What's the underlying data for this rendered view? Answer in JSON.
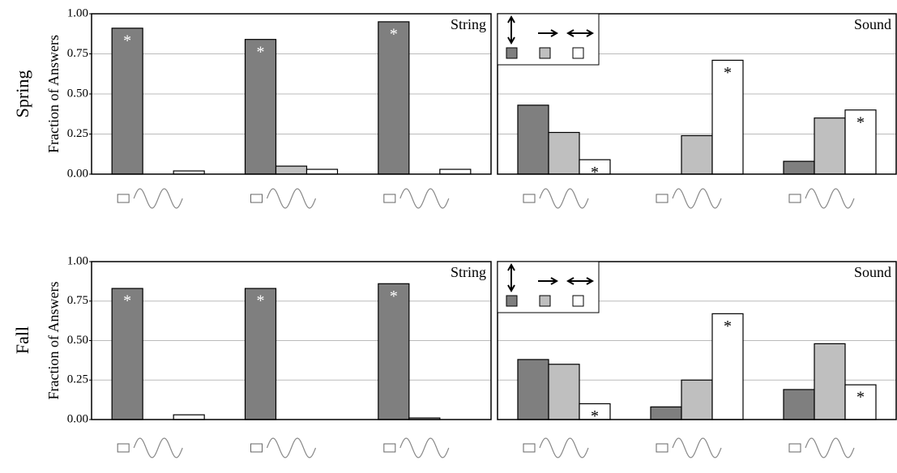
{
  "rows": [
    "Spring",
    "Fall"
  ],
  "chart_data": [
    {
      "type": "bar",
      "title": "String",
      "ylabel": "Fraction of Answers",
      "categories": [
        null,
        null,
        null
      ],
      "series": [
        {
          "color": "#7f7f7f",
          "values": [
            0.91,
            0.84,
            0.95
          ]
        },
        {
          "color": "#bfbfbf",
          "values": [
            0,
            0.05,
            0
          ]
        },
        {
          "color": "#ffffff",
          "values": [
            0.02,
            0.03,
            0.03
          ]
        }
      ],
      "marker": "*",
      "marked": [
        0,
        0,
        0
      ],
      "ylim": [
        0,
        1
      ],
      "yticks": [
        {
          "value": 0,
          "label": "0.00"
        },
        {
          "value": 0.25,
          "label": "0.25"
        },
        {
          "value": 0.5,
          "label": "0.50"
        },
        {
          "value": 0.75,
          "label": "0.75"
        },
        {
          "value": 1,
          "label": "1.00"
        }
      ],
      "grid": true
    },
    {
      "type": "bar",
      "title": "Sound",
      "categories": [
        null,
        null,
        null
      ],
      "series": [
        {
          "color": "#7f7f7f",
          "values": [
            0.43,
            0,
            0.08
          ]
        },
        {
          "color": "#bfbfbf",
          "values": [
            0.26,
            0.24,
            0.35
          ]
        },
        {
          "color": "#ffffff",
          "values": [
            0.09,
            0.71,
            0.4
          ]
        }
      ],
      "marker": "*",
      "marked": [
        2,
        2,
        2
      ],
      "ylim": [
        0,
        1
      ],
      "gridlines": [
        0.25,
        0.5,
        0.75
      ],
      "grid": true,
      "legend": "top-left"
    },
    {
      "type": "bar",
      "title": "String",
      "ylabel": "Fraction of Answers",
      "categories": [
        null,
        null,
        null
      ],
      "series": [
        {
          "color": "#7f7f7f",
          "values": [
            0.83,
            0.83,
            0.86
          ]
        },
        {
          "color": "#bfbfbf",
          "values": [
            0,
            0,
            0.01
          ]
        },
        {
          "color": "#ffffff",
          "values": [
            0.03,
            0,
            0
          ]
        }
      ],
      "marker": "*",
      "marked": [
        0,
        0,
        0
      ],
      "ylim": [
        0,
        1
      ],
      "yticks": [
        {
          "value": 0,
          "label": "0.00"
        },
        {
          "value": 0.25,
          "label": "0.25"
        },
        {
          "value": 0.5,
          "label": "0.50"
        },
        {
          "value": 0.75,
          "label": "0.75"
        },
        {
          "value": 1,
          "label": "1.00"
        }
      ],
      "grid": true
    },
    {
      "type": "bar",
      "title": "Sound",
      "categories": [
        null,
        null,
        null
      ],
      "series": [
        {
          "color": "#7f7f7f",
          "values": [
            0.38,
            0.08,
            0.19
          ]
        },
        {
          "color": "#bfbfbf",
          "values": [
            0.35,
            0.25,
            0.48
          ]
        },
        {
          "color": "#ffffff",
          "values": [
            0.1,
            0.67,
            0.22
          ]
        }
      ],
      "marker": "*",
      "marked": [
        2,
        2,
        2
      ],
      "ylim": [
        0,
        1
      ],
      "gridlines": [
        0.25,
        0.5,
        0.75
      ],
      "grid": true,
      "legend": "top-left"
    }
  ]
}
